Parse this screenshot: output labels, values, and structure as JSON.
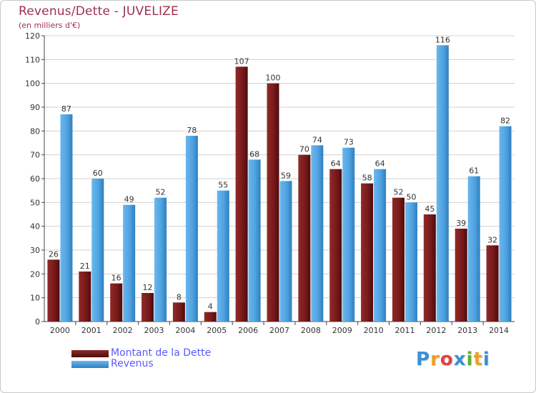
{
  "header": {
    "title": "Revenus/Dette - JUVELIZE",
    "subtitle": "(en milliers d'€)"
  },
  "chart_data": {
    "type": "bar",
    "title": "Revenus/Dette - JUVELIZE",
    "subtitle": "(en milliers d'€)",
    "categories": [
      "2000",
      "2001",
      "2002",
      "2003",
      "2004",
      "2005",
      "2006",
      "2007",
      "2008",
      "2009",
      "2010",
      "2011",
      "2012",
      "2013",
      "2014"
    ],
    "series": [
      {
        "name": "Montant de la Dette",
        "color": "#7a1a1a",
        "values": [
          26,
          21,
          16,
          12,
          8,
          4,
          107,
          100,
          70,
          64,
          58,
          52,
          45,
          39,
          32
        ]
      },
      {
        "name": "Revenus",
        "color": "#4fa3e0",
        "values": [
          87,
          60,
          49,
          52,
          78,
          55,
          68,
          59,
          74,
          73,
          64,
          50,
          116,
          61,
          82
        ]
      }
    ],
    "ylim": [
      0,
      120
    ],
    "yticks": [
      0,
      10,
      20,
      30,
      40,
      50,
      60,
      70,
      80,
      90,
      100,
      110,
      120
    ],
    "grid": true,
    "legend_position": "bottom-left",
    "data_labels": true
  },
  "legend": {
    "items": [
      {
        "label": "Montant de la Dette",
        "color": "#7a1a1a"
      },
      {
        "label": "Revenus",
        "color": "#4fa3e0"
      }
    ]
  },
  "logo": {
    "letters": [
      "P",
      "r",
      "o",
      "x",
      "i",
      "t",
      "i"
    ],
    "colors": [
      "#3a8fd8",
      "#f0a020",
      "#e04040",
      "#3a8fd8",
      "#60b030",
      "#f0a020",
      "#3a8fd8"
    ]
  }
}
